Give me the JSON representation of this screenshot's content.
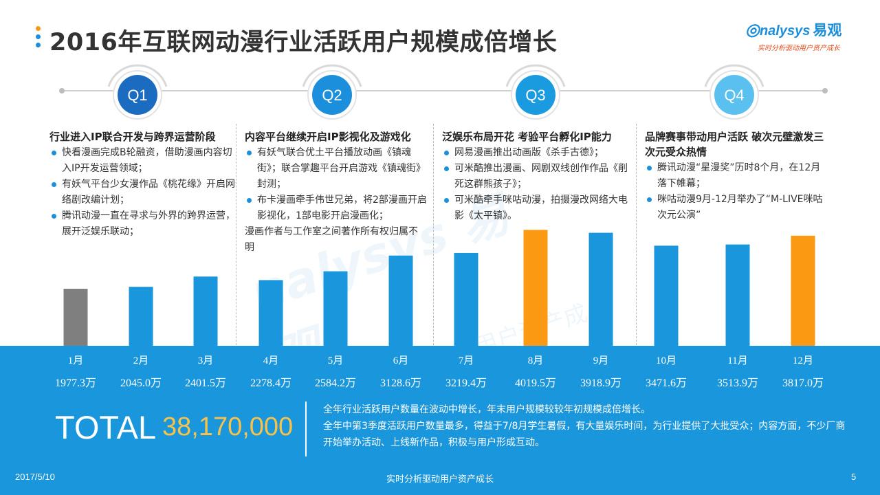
{
  "title": "2016年互联网动漫行业活跃用户规模成倍增长",
  "logo": {
    "brand": "nalysys",
    "brand_cn": "易观",
    "tagline": "实时分析驱动用户资产成长"
  },
  "quarters": [
    {
      "badge": "Q1",
      "heading": "行业进入IP联合开发与跨界运营阶段",
      "bullets": [
        "快看漫画完成B轮融资，借助漫画内容切入IP开发运营领域；",
        "有妖气平台少女漫作品《桃花缘》开启网络剧改编计划；",
        "腾讯动漫一直在寻求与外界的跨界运营，展开泛娱乐联动；"
      ],
      "note": ""
    },
    {
      "badge": "Q2",
      "heading": "内容平台继续开启IP影视化及游戏化",
      "bullets": [
        "有妖气联合优土平台播放动画《镇魂街》；联合掌趣平台开启游戏《镇魂街》封测；",
        "布卡漫画牵手伟世兄弟，将2部漫画开启影视化，1部电影开启漫画化；"
      ],
      "note": "漫画作者与工作室之间著作所有权归属不明"
    },
    {
      "badge": "Q3",
      "heading": "泛娱乐布局开花 考验平台孵化IP能力",
      "bullets": [
        "网易漫画推出动画版《杀手古德》；",
        "可米酷推出漫画、网剧双线创作作品《削死这群熊孩子》；",
        "可米酷牵手咪咕动漫，拍摄漫改网络大电影《太平镇》。"
      ],
      "note": ""
    },
    {
      "badge": "Q4",
      "heading": "品牌赛事带动用户活跃 破次元壁激发三次元受众热情",
      "bullets": [
        "腾讯动漫“星漫奖”历时8个月，在12月落下帷幕；",
        "咪咕动漫9月-12月举办了“M-LIVE咪咕次元公演”"
      ],
      "note": ""
    }
  ],
  "chart_data": {
    "type": "bar",
    "title": "2016年互联网动漫行业活跃用户规模",
    "categories": [
      "1月",
      "2月",
      "3月",
      "4月",
      "5月",
      "6月",
      "7月",
      "8月",
      "9月",
      "10月",
      "11月",
      "12月"
    ],
    "values": [
      1977.3,
      2045.0,
      2401.5,
      2278.4,
      2584.2,
      3128.6,
      3219.4,
      4019.5,
      3918.9,
      3471.6,
      3513.9,
      3817.0
    ],
    "value_labels": [
      "1977.3万",
      "2045.0万",
      "2401.5万",
      "2278.4万",
      "2584.2万",
      "3128.6万",
      "3219.4万",
      "4019.5万",
      "3918.9万",
      "3471.6万",
      "3513.9万",
      "3817.0万"
    ],
    "unit": "万",
    "highlight": [
      "1月",
      "8月",
      "12月"
    ],
    "colors": {
      "default": "#1a96dc",
      "first": "#7f7f7f",
      "highlight": "#fb9a12"
    },
    "ylim": [
      0,
      4100
    ]
  },
  "total": {
    "label": "TOTAL",
    "value": "38,170,000"
  },
  "summary": [
    "全年行业活跃用户数量在波动中增长，年末用户规模较较年初规模成倍增长。",
    "全年中第3季度活跃用户数量最多，得益于7/8月学生暑假，有大量娱乐时间，为行业提供了大批受众；内容方面，不少厂商开始举办活动、上线新作品，积极与用户形成互动。"
  ],
  "footer": {
    "date": "2017/5/10",
    "tagline": "实时分析驱动用户资产成长",
    "page": "5"
  },
  "colors": {
    "accent_blue": "#1a96dc",
    "q_colors": [
      "#1b6cc0",
      "#1b8fdc",
      "#1a9be0",
      "#5ac0f0"
    ],
    "title_dots": [
      "#f39c12",
      "#1b8fdc",
      "#1b8fdc"
    ],
    "total_value": "#f7c24a"
  }
}
